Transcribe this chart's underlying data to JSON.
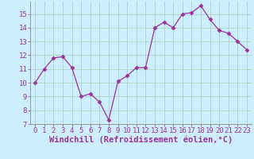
{
  "x": [
    0,
    1,
    2,
    3,
    4,
    5,
    6,
    7,
    8,
    9,
    10,
    11,
    12,
    13,
    14,
    15,
    16,
    17,
    18,
    19,
    20,
    21,
    22,
    23
  ],
  "y": [
    10,
    11,
    11.8,
    11.9,
    11.1,
    9.0,
    9.2,
    8.6,
    7.3,
    10.1,
    10.5,
    11.1,
    11.1,
    14.0,
    14.4,
    14.0,
    15.0,
    15.1,
    15.6,
    14.6,
    13.8,
    13.6,
    13.0,
    12.4
  ],
  "line_color": "#993399",
  "marker": "D",
  "marker_size": 2.5,
  "bg_color": "#cceeff",
  "grid_color": "#aaccbb",
  "xlabel": "Windchill (Refroidissement éolien,°C)",
  "xlabel_fontsize": 7.5,
  "ylim": [
    7,
    15.9
  ],
  "xlim": [
    -0.5,
    23.5
  ],
  "yticks": [
    7,
    8,
    9,
    10,
    11,
    12,
    13,
    14,
    15
  ],
  "xticks": [
    0,
    1,
    2,
    3,
    4,
    5,
    6,
    7,
    8,
    9,
    10,
    11,
    12,
    13,
    14,
    15,
    16,
    17,
    18,
    19,
    20,
    21,
    22,
    23
  ],
  "tick_fontsize": 6.5,
  "spine_color": "#888888",
  "tick_color": "#993399",
  "label_color": "#993399"
}
